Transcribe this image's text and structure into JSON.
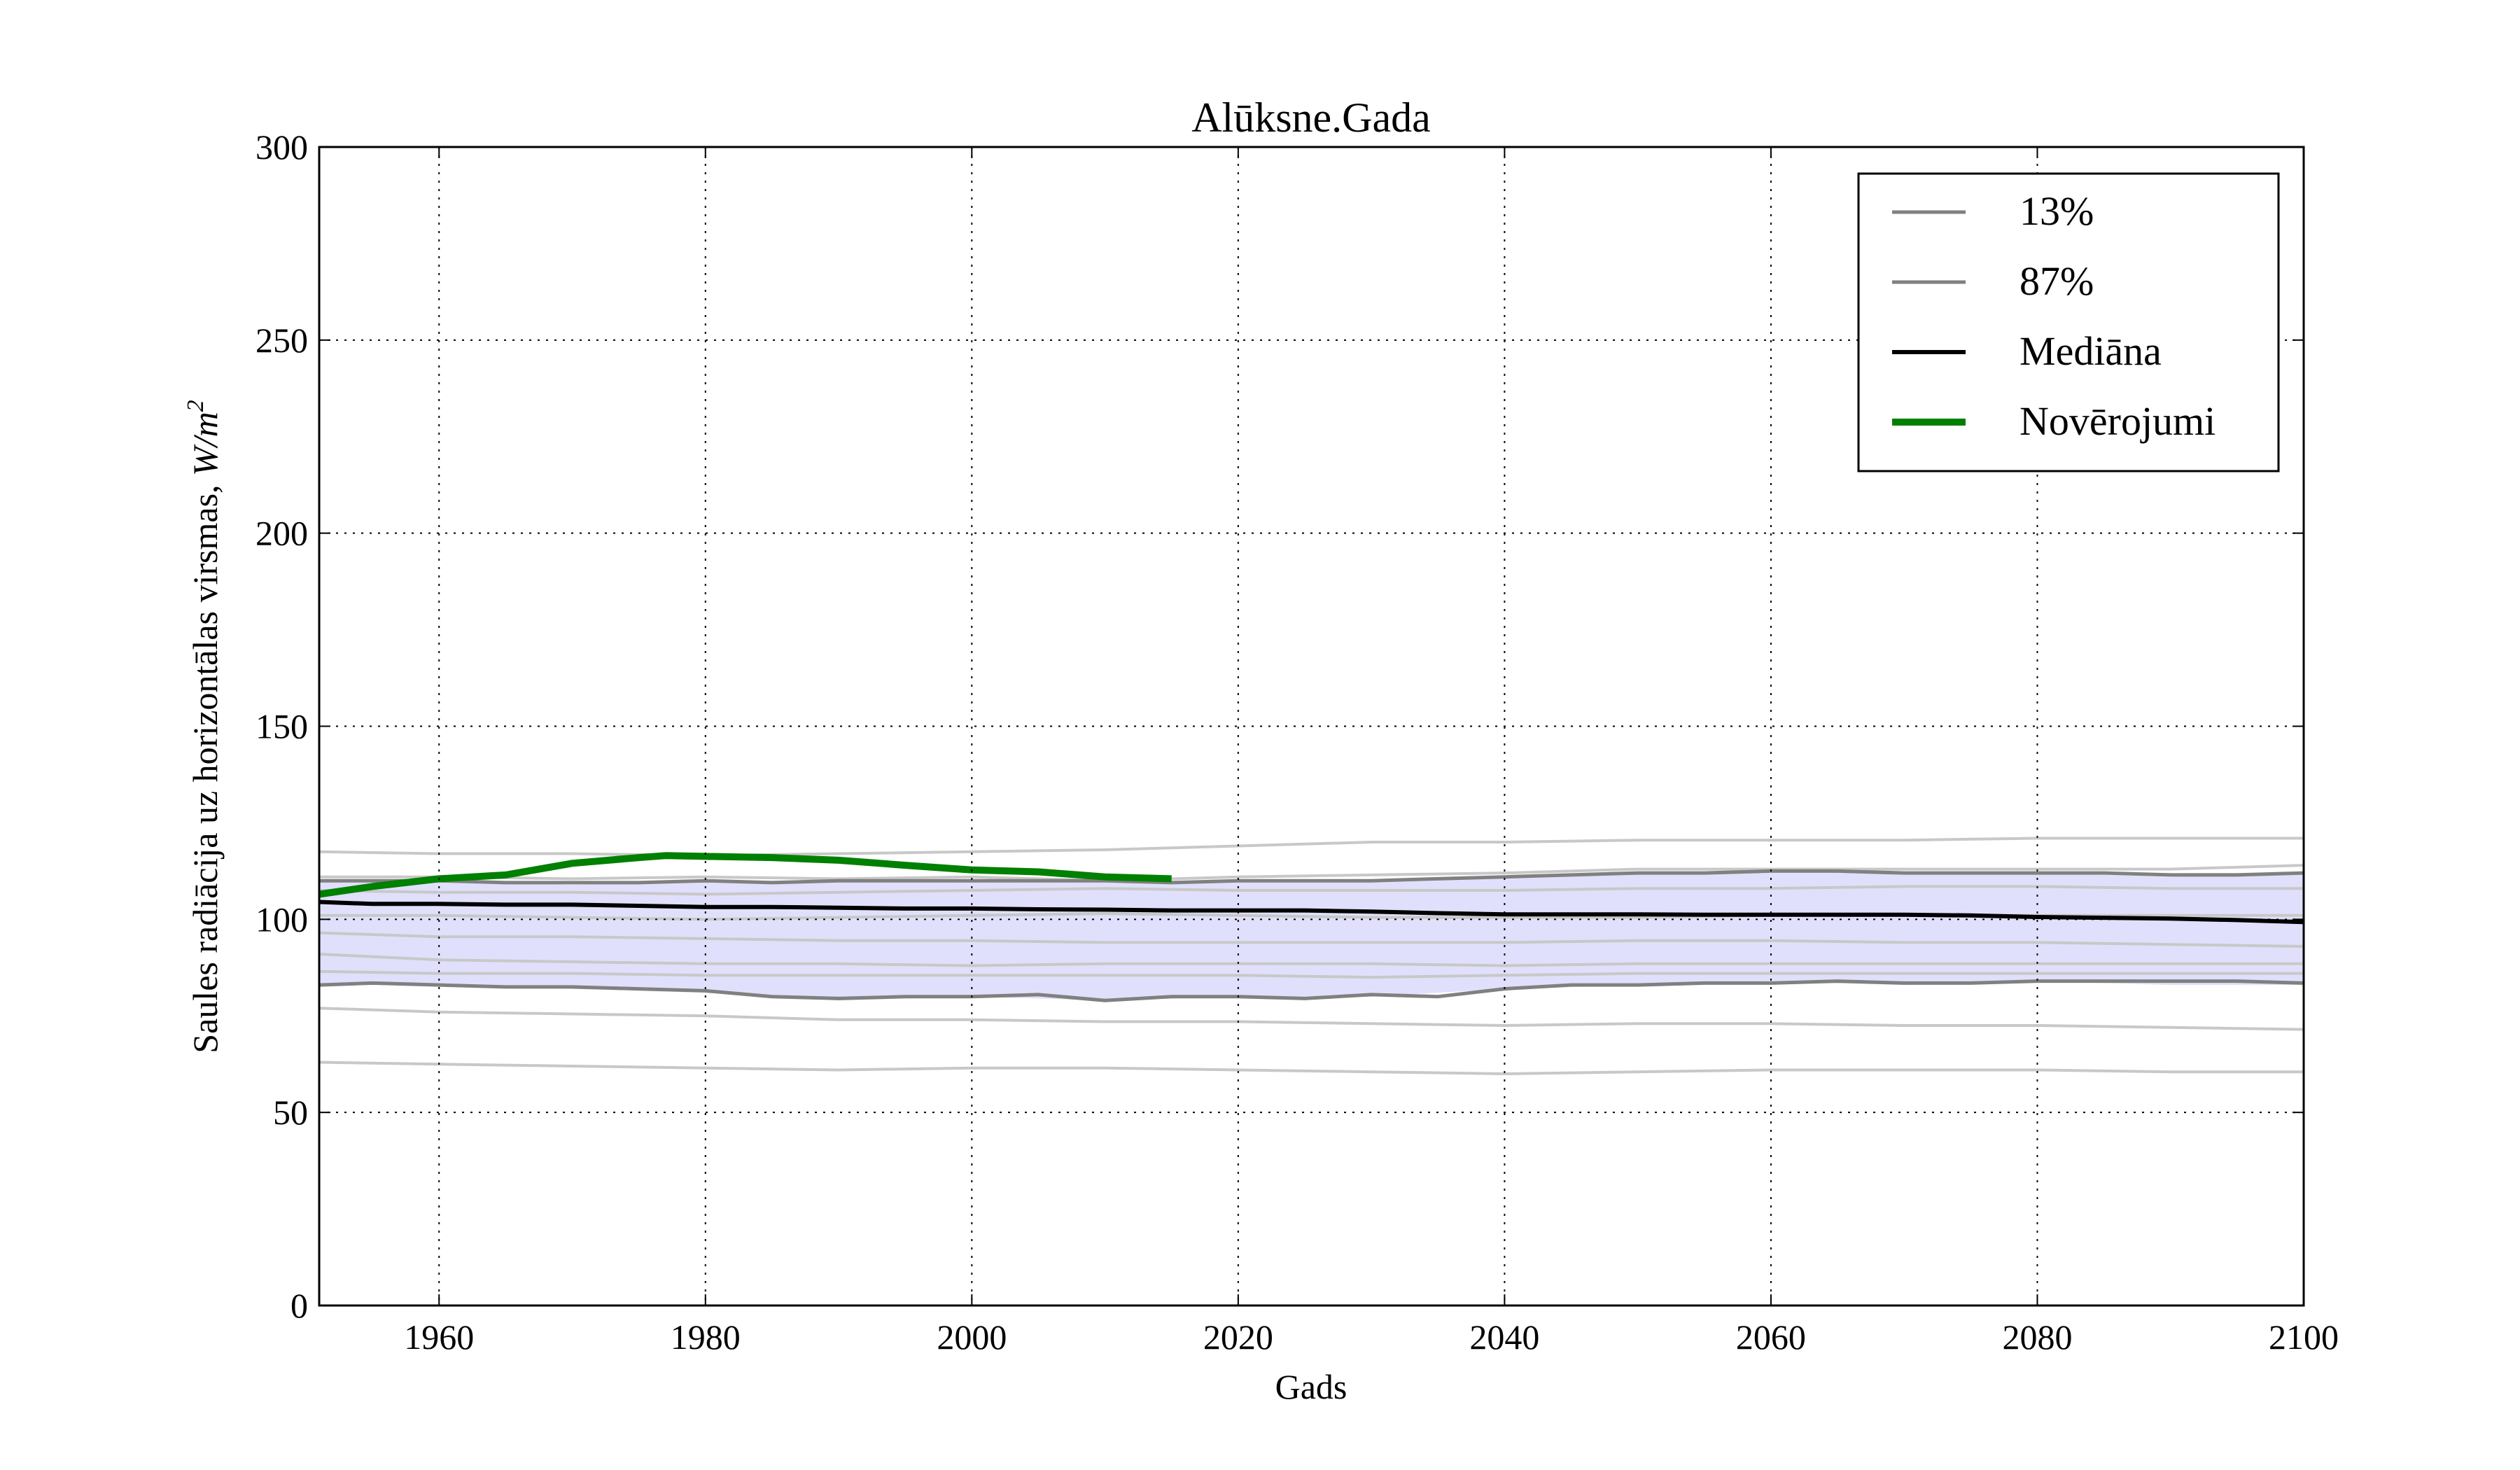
{
  "chart_data": {
    "type": "line",
    "title": "Alūksne.Gada",
    "xlabel": "Gads",
    "ylabel": {
      "text": "Saules radiācija uz horizontālas virsmas, ",
      "unit_main": "W/m",
      "unit_exp": "2"
    },
    "xlim": [
      1951,
      2100
    ],
    "ylim": [
      0,
      300
    ],
    "xticks": [
      "1960",
      "1980",
      "2000",
      "2020",
      "2040",
      "2060",
      "2080",
      "2100"
    ],
    "yticks": [
      "0",
      "50",
      "100",
      "150",
      "200",
      "250",
      "300"
    ],
    "grid": true,
    "legend_position": "upper right",
    "colors": {
      "band_fill": "#e0e0fc",
      "percentile_line": "#808080",
      "ensemble_line": "#c8c8c8",
      "median_line": "#000000",
      "observations_line": "#008000"
    },
    "band": {
      "x": [
        1951,
        1960,
        1970,
        1980,
        1990,
        2000,
        2010,
        2020,
        2030,
        2040,
        2050,
        2060,
        2070,
        2080,
        2090,
        2100
      ],
      "low": [
        83,
        83,
        82,
        81,
        79,
        80,
        79,
        80,
        80,
        82,
        83,
        84,
        83,
        84,
        83,
        83
      ],
      "high": [
        110,
        110,
        109,
        110,
        110,
        110,
        110,
        110,
        110,
        111,
        112,
        112,
        112,
        112,
        111,
        112
      ]
    },
    "series": [
      {
        "name": "13%",
        "role": "percentile",
        "x": [
          1951,
          1955,
          1960,
          1965,
          1970,
          1975,
          1980,
          1985,
          1990,
          1995,
          2000,
          2005,
          2010,
          2015,
          2020,
          2025,
          2030,
          2035,
          2040,
          2045,
          2050,
          2055,
          2060,
          2065,
          2070,
          2075,
          2080,
          2085,
          2090,
          2095,
          2100
        ],
        "values": [
          83,
          83.5,
          83,
          82.5,
          82.5,
          82,
          81.5,
          80,
          79.5,
          80,
          80,
          80.5,
          79,
          80,
          80,
          79.5,
          80.5,
          80,
          82,
          83,
          83,
          83.5,
          83.5,
          84,
          83.5,
          83.5,
          84,
          84,
          84,
          84,
          83.5
        ]
      },
      {
        "name": "87%",
        "role": "percentile",
        "x": [
          1951,
          1955,
          1960,
          1965,
          1970,
          1975,
          1980,
          1985,
          1990,
          1995,
          2000,
          2005,
          2010,
          2015,
          2020,
          2025,
          2030,
          2035,
          2040,
          2045,
          2050,
          2055,
          2060,
          2065,
          2070,
          2075,
          2080,
          2085,
          2090,
          2095,
          2100
        ],
        "values": [
          110,
          110,
          110,
          109.5,
          109.5,
          109.5,
          110,
          109.5,
          110,
          110,
          110,
          110,
          110,
          109.5,
          110,
          110,
          110,
          110.5,
          111,
          111.5,
          112,
          112,
          112.5,
          112.5,
          112,
          112,
          112,
          112,
          111.5,
          111.5,
          112
        ]
      },
      {
        "name": "Mediāna",
        "role": "median",
        "x": [
          1951,
          1955,
          1960,
          1965,
          1970,
          1975,
          1980,
          1985,
          1990,
          1995,
          2000,
          2005,
          2010,
          2015,
          2020,
          2025,
          2030,
          2035,
          2040,
          2045,
          2050,
          2055,
          2060,
          2065,
          2070,
          2075,
          2080,
          2085,
          2090,
          2095,
          2100
        ],
        "values": [
          104.5,
          104,
          104,
          103.8,
          103.8,
          103.5,
          103.2,
          103.2,
          103,
          102.8,
          102.8,
          102.6,
          102.5,
          102.3,
          102.3,
          102.3,
          102,
          101.6,
          101.3,
          101.3,
          101.3,
          101.2,
          101.2,
          101.2,
          101.2,
          101,
          100.6,
          100.4,
          100.2,
          99.8,
          99.3
        ]
      },
      {
        "name": "Novērojumi",
        "role": "observations",
        "x": [
          1951,
          1955,
          1960,
          1965,
          1970,
          1975,
          1977,
          1980,
          1985,
          1990,
          1995,
          2000,
          2005,
          2010,
          2015
        ],
        "values": [
          106.5,
          108.5,
          110.5,
          111.5,
          114.5,
          116,
          116.5,
          116.3,
          116,
          115.3,
          114,
          112.8,
          112.3,
          111,
          110.5
        ]
      }
    ],
    "ensemble": [
      {
        "x": [
          1951,
          1960,
          1970,
          1980,
          1990,
          2000,
          2010,
          2020,
          2030,
          2040,
          2050,
          2060,
          2070,
          2080,
          2090,
          2100
        ],
        "values": [
          117.5,
          117,
          117,
          116.5,
          117,
          117.5,
          118,
          119,
          120,
          120,
          120.5,
          120.5,
          120.5,
          121,
          121,
          121
        ]
      },
      {
        "x": [
          1951,
          1960,
          1970,
          1980,
          1990,
          2000,
          2010,
          2020,
          2030,
          2040,
          2050,
          2060,
          2070,
          2080,
          2090,
          2100
        ],
        "values": [
          111,
          111,
          110.5,
          111,
          110.5,
          111,
          110,
          111,
          111.5,
          112,
          113,
          113,
          113,
          113,
          113,
          114
        ]
      },
      {
        "x": [
          1951,
          1960,
          1970,
          1980,
          1990,
          2000,
          2010,
          2020,
          2030,
          2040,
          2050,
          2060,
          2070,
          2080,
          2090,
          2100
        ],
        "values": [
          107.5,
          107,
          107,
          106.5,
          107,
          107.5,
          108,
          107.5,
          107.5,
          107.5,
          108,
          108,
          108.5,
          108.5,
          108,
          108
        ]
      },
      {
        "x": [
          1951,
          1960,
          1970,
          1980,
          1990,
          2000,
          2010,
          2020,
          2030,
          2040,
          2050,
          2060,
          2070,
          2080,
          2090,
          2100
        ],
        "values": [
          101,
          101,
          100.5,
          100,
          100.5,
          101,
          101.5,
          101,
          100.5,
          100.5,
          100.5,
          101,
          101,
          101,
          101,
          101
        ]
      },
      {
        "x": [
          1951,
          1960,
          1970,
          1980,
          1990,
          2000,
          2010,
          2020,
          2030,
          2040,
          2050,
          2060,
          2070,
          2080,
          2090,
          2100
        ],
        "values": [
          96.5,
          95.5,
          95.5,
          95,
          94.5,
          94.5,
          94,
          94,
          94,
          94,
          94.5,
          94.5,
          94,
          94,
          93.5,
          93
        ]
      },
      {
        "x": [
          1951,
          1960,
          1970,
          1980,
          1990,
          2000,
          2010,
          2020,
          2030,
          2040,
          2050,
          2060,
          2070,
          2080,
          2090,
          2100
        ],
        "values": [
          91,
          89.5,
          89,
          88.5,
          88.5,
          88,
          88.5,
          88.5,
          88.5,
          88,
          88.5,
          88.5,
          88.5,
          88.5,
          88.5,
          88.5
        ]
      },
      {
        "x": [
          1951,
          1960,
          1970,
          1980,
          1990,
          2000,
          2010,
          2020,
          2030,
          2040,
          2050,
          2060,
          2070,
          2080,
          2090,
          2100
        ],
        "values": [
          86.5,
          86,
          86,
          85.5,
          85.5,
          85.5,
          85.5,
          85.5,
          85,
          85.5,
          86,
          86,
          86,
          86,
          86,
          86
        ]
      },
      {
        "x": [
          1951,
          1960,
          1970,
          1980,
          1990,
          2000,
          2010,
          2020,
          2030,
          2040,
          2050,
          2060,
          2070,
          2080,
          2090,
          2100
        ],
        "values": [
          77,
          76,
          75.5,
          75,
          74,
          74,
          73.5,
          73.5,
          73,
          72.5,
          73,
          73,
          72.5,
          72.5,
          72,
          71.5
        ]
      },
      {
        "x": [
          1951,
          1960,
          1970,
          1980,
          1990,
          2000,
          2010,
          2020,
          2030,
          2040,
          2050,
          2060,
          2070,
          2080,
          2090,
          2100
        ],
        "values": [
          63,
          62.5,
          62,
          61.5,
          61,
          61.5,
          61.5,
          61,
          60.5,
          60,
          60.5,
          61,
          61,
          61,
          60.5,
          60.5
        ]
      }
    ]
  }
}
